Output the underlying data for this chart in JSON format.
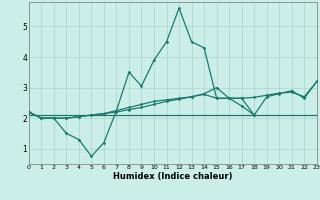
{
  "xlabel": "Humidex (Indice chaleur)",
  "xlim": [
    0,
    23
  ],
  "ylim": [
    0.5,
    5.8
  ],
  "yticks": [
    1,
    2,
    3,
    4,
    5
  ],
  "xticks": [
    0,
    1,
    2,
    3,
    4,
    5,
    6,
    7,
    8,
    9,
    10,
    11,
    12,
    13,
    14,
    15,
    16,
    17,
    18,
    19,
    20,
    21,
    22,
    23
  ],
  "bg_color": "#cceee8",
  "grid_color": "#e8f8f8",
  "line_color": "#1a7a6e",
  "line1_x": [
    0,
    23
  ],
  "line1_y": [
    2.1,
    2.1
  ],
  "line2_x": [
    0,
    1,
    2,
    3,
    4,
    5,
    6,
    7,
    8,
    9,
    10,
    11,
    12,
    13,
    14,
    15,
    16,
    17,
    18,
    19,
    20,
    21,
    22,
    23
  ],
  "line2_y": [
    2.2,
    2.0,
    2.0,
    2.0,
    2.05,
    2.1,
    2.15,
    2.2,
    2.28,
    2.35,
    2.45,
    2.55,
    2.62,
    2.7,
    2.78,
    2.65,
    2.65,
    2.65,
    2.68,
    2.75,
    2.82,
    2.85,
    2.7,
    3.2
  ],
  "line3_x": [
    0,
    1,
    2,
    3,
    4,
    5,
    6,
    7,
    8,
    9,
    10,
    11,
    12,
    13,
    14,
    15,
    16,
    17,
    18,
    19,
    20,
    21,
    22,
    23
  ],
  "line3_y": [
    2.2,
    2.0,
    2.0,
    1.5,
    1.3,
    0.75,
    1.2,
    2.25,
    3.5,
    3.05,
    3.9,
    4.5,
    5.6,
    4.5,
    4.3,
    2.65,
    2.65,
    2.4,
    2.1,
    2.7,
    2.8,
    2.9,
    2.65,
    3.2
  ],
  "line4_x": [
    0,
    1,
    2,
    3,
    4,
    5,
    6,
    7,
    8,
    9,
    10,
    11,
    12,
    13,
    14,
    15,
    16,
    17,
    18
  ],
  "line4_y": [
    2.2,
    2.0,
    2.0,
    2.0,
    2.05,
    2.1,
    2.15,
    2.25,
    2.35,
    2.45,
    2.55,
    2.6,
    2.65,
    2.7,
    2.8,
    3.0,
    2.65,
    2.65,
    2.1
  ]
}
